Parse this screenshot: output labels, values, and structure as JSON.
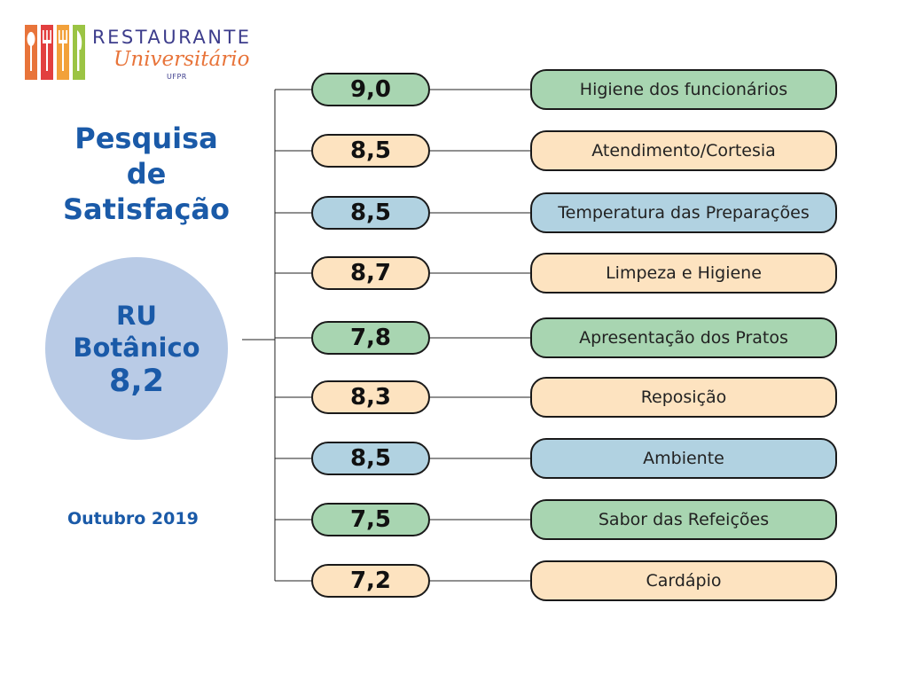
{
  "logo": {
    "name": "RESTAURANTE",
    "subtitle": "Universitário",
    "org": "UFPR",
    "bar_colors": [
      "#e8743a",
      "#e23f3f",
      "#f2a13a",
      "#9bc444"
    ]
  },
  "title_lines": [
    "Pesquisa",
    "de",
    "Satisfação"
  ],
  "unit": {
    "name_lines": [
      "RU",
      "Botânico"
    ],
    "overall_score": "8,2"
  },
  "period": "Outubro 2019",
  "colors": {
    "green": "#a8d5b1",
    "peach": "#fde3c0",
    "blue": "#b1d2e1",
    "title_blue": "#1a5aa8",
    "circle": "#b9cbe6"
  },
  "items": [
    {
      "score": "9,0",
      "label": "Higiene dos funcionários",
      "color": "green"
    },
    {
      "score": "8,5",
      "label": "Atendimento/Cortesia",
      "color": "peach"
    },
    {
      "score": "8,5",
      "label": "Temperatura das Preparações",
      "color": "blue"
    },
    {
      "score": "8,7",
      "label": "Limpeza e Higiene",
      "color": "peach"
    },
    {
      "score": "7,8",
      "label": "Apresentação dos Pratos",
      "color": "green"
    },
    {
      "score": "8,3",
      "label": "Reposição",
      "color": "peach"
    },
    {
      "score": "8,5",
      "label": "Ambiente",
      "color": "blue"
    },
    {
      "score": "7,5",
      "label": "Sabor das Refeições",
      "color": "green"
    },
    {
      "score": "7,2",
      "label": "Cardápio",
      "color": "peach"
    }
  ]
}
